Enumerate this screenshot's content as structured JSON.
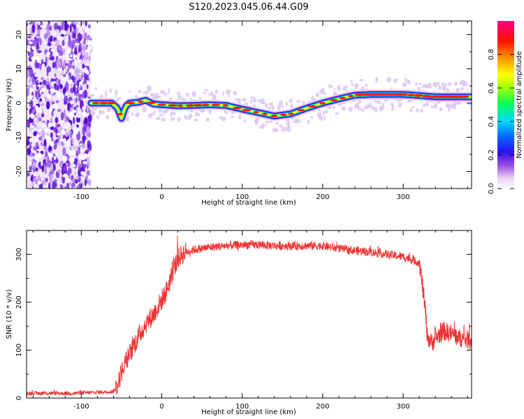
{
  "title": "S120.2023.045.06.44.G09",
  "chart_data": [
    {
      "type": "heatmap",
      "xlabel": "Height of straight line (km)",
      "ylabel": "Frequency (Hz)",
      "xlim": [
        -168,
        385
      ],
      "ylim": [
        -25,
        24
      ],
      "xticks": [
        -100,
        0,
        100,
        200,
        300
      ],
      "xtick_labels": [
        "-100",
        "0",
        "100",
        "200",
        "300"
      ],
      "yticks": [
        -20,
        -10,
        0,
        10,
        20
      ],
      "ytick_labels": [
        "-20",
        "-10",
        "0",
        "10",
        "20"
      ],
      "noise_region_x": [
        -168,
        -88
      ],
      "frequency_ridge": {
        "x": [
          -88,
          -75,
          -62,
          -55,
          -50,
          -45,
          -40,
          -30,
          -20,
          -10,
          0,
          20,
          40,
          60,
          80,
          100,
          120,
          140,
          160,
          180,
          200,
          220,
          240,
          260,
          280,
          300,
          320,
          340,
          360,
          385
        ],
        "y": [
          0,
          0,
          0,
          -1.5,
          -4.5,
          -1,
          0,
          0.2,
          0.8,
          -0.3,
          -0.5,
          -0.8,
          -0.7,
          -0.5,
          -0.7,
          -1.8,
          -2.8,
          -3.8,
          -3.2,
          -1.5,
          0,
          1.2,
          2.3,
          2.5,
          2.5,
          2.5,
          2.2,
          1.8,
          1.8,
          1.8
        ]
      },
      "colorbar": {
        "label": "Normalized spectral amplitude",
        "ticks": [
          0.0,
          0.2,
          0.4,
          0.6,
          0.8
        ],
        "tick_labels": [
          "0.0",
          "0.2",
          "0.4",
          "0.6",
          "0.8"
        ],
        "range": [
          0,
          1
        ],
        "colormap": [
          "#ffffff",
          "#e8d4f4",
          "#6a1fd6",
          "#0000ff",
          "#00d0ff",
          "#00ff40",
          "#ffff00",
          "#ff8000",
          "#ff0000",
          "#ff0080"
        ]
      }
    },
    {
      "type": "line",
      "xlabel": "Height of straight line (km)",
      "ylabel": "SNR (10 * v/v)",
      "xlim": [
        -168,
        385
      ],
      "ylim": [
        0,
        350
      ],
      "xticks": [
        -100,
        0,
        100,
        200,
        300
      ],
      "xtick_labels": [
        "-100",
        "0",
        "100",
        "200",
        "300"
      ],
      "yticks": [
        0,
        100,
        200,
        300
      ],
      "ytick_labels": [
        "0",
        "100",
        "200",
        "300"
      ],
      "series": [
        {
          "color": "#ee3333",
          "x": [
            -168,
            -140,
            -110,
            -80,
            -60,
            -55,
            -50,
            -45,
            -40,
            -35,
            -30,
            -25,
            -20,
            -15,
            -10,
            -5,
            0,
            5,
            10,
            15,
            20,
            25,
            30,
            40,
            60,
            80,
            100,
            120,
            140,
            160,
            180,
            200,
            220,
            240,
            260,
            280,
            300,
            310,
            320,
            322,
            325,
            328,
            330,
            335,
            340,
            350,
            360,
            370,
            385
          ],
          "y": [
            10,
            10,
            10,
            12,
            14,
            28,
            55,
            75,
            90,
            110,
            125,
            140,
            155,
            165,
            175,
            190,
            205,
            220,
            245,
            270,
            290,
            300,
            305,
            310,
            315,
            318,
            320,
            320,
            318,
            318,
            318,
            318,
            312,
            308,
            305,
            300,
            295,
            290,
            282,
            260,
            220,
            175,
            130,
            115,
            125,
            140,
            135,
            125,
            120
          ]
        }
      ]
    }
  ]
}
